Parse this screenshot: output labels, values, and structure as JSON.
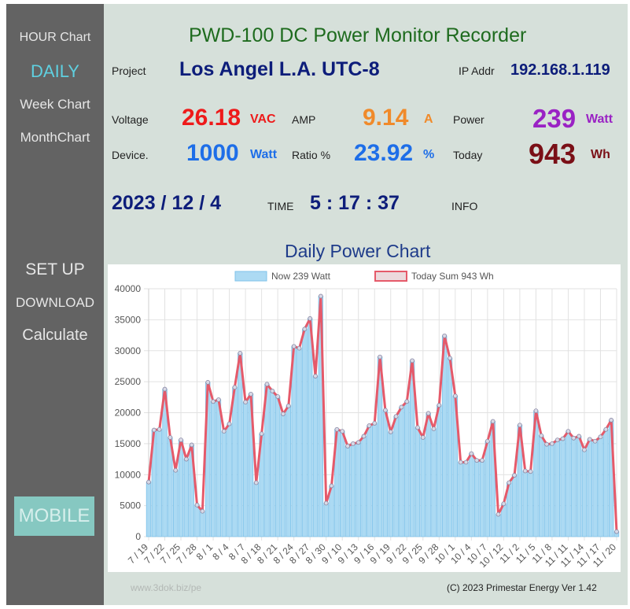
{
  "sidebar": {
    "items": [
      {
        "label": "HOUR Chart"
      },
      {
        "label": "DAILY"
      },
      {
        "label": "Week Chart"
      },
      {
        "label": "MonthChart"
      },
      {
        "label": "SET UP"
      },
      {
        "label": "DOWNLOAD"
      },
      {
        "label": "Calculate"
      }
    ],
    "mobile_label": "MOBILE"
  },
  "header": {
    "title": "PWD-100  DC Power Monitor Recorder"
  },
  "info": {
    "project_label": "Project",
    "project_value": "Los Angel L.A. UTC-8",
    "ip_label": "IP Addr",
    "ip_value": "192.168.1.119",
    "voltage_label": "Voltage",
    "voltage_value": "26.18",
    "voltage_unit": "VAC",
    "amp_label": "AMP",
    "amp_value": "9.14",
    "amp_unit": "A",
    "power_label": "Power",
    "power_value": "239",
    "power_unit": "Watt",
    "device_label": "Device.",
    "device_value": "1000",
    "device_unit": "Watt",
    "ratio_label": "Ratio %",
    "ratio_value": "23.92",
    "ratio_unit": "%",
    "today_label": "Today",
    "today_value": "943",
    "today_unit": "Wh",
    "date_value": "2023 / 12 / 4",
    "time_label": "TIME",
    "time_value": "5 : 17 : 37",
    "info_label": "INFO"
  },
  "colors": {
    "sidebar_bg": "#636363",
    "panel_bg": "#d6e0da",
    "title_green": "#1e6b1e",
    "navy": "#0d1d7a",
    "voltage_red": "#ee1a1a",
    "amp_orange": "#f08a2a",
    "power_purple": "#9a22c4",
    "device_blue": "#1e6ee8",
    "today_maroon": "#7a0f16",
    "bar_fill": "#acdaf3",
    "bar_stroke": "#7fc3ea",
    "line_red": "#e55a6a",
    "mobile_bg": "#86c8c1"
  },
  "footer": {
    "left": "www.3dok.biz/pe",
    "right": "(C) 2023 Primestar Energy   Ver 1.42"
  },
  "chart_data": {
    "type": "bar",
    "title": "Daily Power Chart",
    "legend": [
      {
        "name": "Now 239 Watt",
        "kind": "bar"
      },
      {
        "name": "Today Sum 943 Wh",
        "kind": "line"
      }
    ],
    "legend_position": "top",
    "ylim": [
      0,
      40000
    ],
    "yticks": [
      0,
      5000,
      10000,
      15000,
      20000,
      25000,
      30000,
      35000,
      40000
    ],
    "grid": true,
    "tick_labels": [
      "7 / 19",
      "7 / 22",
      "7 / 25",
      "7 / 28",
      "8 / 1",
      "8 / 4",
      "8 / 7",
      "8 / 18",
      "8 / 21",
      "8 / 24",
      "8 / 27",
      "8 / 30",
      "9 / 10",
      "9 / 13",
      "9 / 16",
      "9 / 19",
      "9 / 22",
      "9 / 25",
      "9 / 28",
      "10 / 1",
      "10 / 4",
      "10 / 7",
      "10 / 12",
      "11 / 2",
      "11 / 5",
      "11 / 8",
      "11 / 11",
      "11 / 14",
      "11 / 17",
      "11 / 20"
    ],
    "values": [
      8800,
      17200,
      17300,
      23800,
      16000,
      10700,
      15600,
      12500,
      14800,
      5100,
      4100,
      24900,
      21800,
      22100,
      17000,
      18200,
      24100,
      29600,
      21700,
      23000,
      8700,
      16600,
      24600,
      23500,
      22600,
      19800,
      21100,
      30700,
      30400,
      33500,
      35200,
      25900,
      38800,
      5400,
      8200,
      17300,
      17000,
      14600,
      15000,
      15200,
      16200,
      17900,
      18300,
      29000,
      20400,
      16900,
      19400,
      20900,
      21800,
      28400,
      17600,
      16000,
      19900,
      17400,
      21200,
      32400,
      28800,
      22700,
      12000,
      12000,
      13400,
      12300,
      12300,
      15400,
      18600,
      3600,
      5300,
      8700,
      9900,
      18000,
      10600,
      10500,
      20300,
      16300,
      14900,
      15000,
      15600,
      15800,
      17000,
      15900,
      16200,
      14000,
      15700,
      15400,
      16100,
      17300,
      18800,
      800
    ],
    "series": [
      {
        "name": "Now 239 Watt",
        "type": "bar"
      },
      {
        "name": "Today Sum 943 Wh",
        "type": "line"
      }
    ]
  }
}
